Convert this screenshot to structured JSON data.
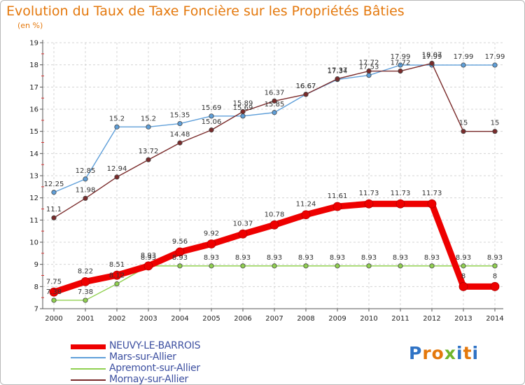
{
  "header": {
    "title": "Evolution du Taux de Taxe Foncière sur les Propriétés Bâties",
    "unit": "(en %)"
  },
  "logo": {
    "letters": [
      "P",
      "r",
      "o",
      "x",
      "i",
      "t",
      "i"
    ],
    "colors": [
      "#2f73c5",
      "#e4780c",
      "#e4780c",
      "#6fb52c",
      "#2f73c5",
      "#e4780c",
      "#2f73c5"
    ]
  },
  "chart_data": {
    "type": "line",
    "title": "Evolution du Taux de Taxe Foncière sur les Propriétés Bâties",
    "ylabel": "(en %)",
    "xlabel": "",
    "categories": [
      "2000",
      "2001",
      "2002",
      "2003",
      "2004",
      "2005",
      "2006",
      "2007",
      "2008",
      "2009",
      "2010",
      "2011",
      "2012",
      "2013",
      "2014"
    ],
    "ylim": [
      7,
      19
    ],
    "yticks": [
      "7",
      "8",
      "9",
      "10",
      "11",
      "12",
      "13",
      "14",
      "15",
      "16",
      "17",
      "18",
      "19"
    ],
    "grid": true,
    "legend_position": "bottom-left",
    "series": [
      {
        "name": "NEUVY-LE-BARROIS",
        "color": "#ee0000",
        "values": [
          7.75,
          8.22,
          8.51,
          8.93,
          9.56,
          9.92,
          10.37,
          10.78,
          11.24,
          11.61,
          11.73,
          11.73,
          11.73,
          8,
          8
        ],
        "labels": [
          "7.75",
          "8.22",
          "8.51",
          "8.93",
          "9.56",
          "9.92",
          "10.37",
          "10.78",
          "11.24",
          "11.61",
          "11.73",
          "11.73",
          "11.73",
          "8",
          "8"
        ]
      },
      {
        "name": "Mars-sur-Allier",
        "color": "#5f9fd9",
        "values": [
          12.25,
          12.85,
          15.2,
          15.2,
          15.35,
          15.69,
          15.69,
          15.85,
          16.67,
          17.34,
          17.53,
          17.99,
          17.99,
          17.99,
          17.99
        ],
        "labels": [
          "12.25",
          "12.85",
          "15.2",
          "15.2",
          "15.35",
          "15.69",
          "15.69",
          "15.85",
          "16.67",
          "17.34",
          "17.53",
          "17.99",
          "17.99",
          "17.99",
          "17.99"
        ]
      },
      {
        "name": "Apremont-sur-Allier",
        "color": "#90d050",
        "values": [
          7.38,
          7.38,
          8.12,
          8.93,
          8.93,
          8.93,
          8.93,
          8.93,
          8.93,
          8.93,
          8.93,
          8.93,
          8.93,
          8.93,
          8.93
        ],
        "labels": [
          "7.38",
          "7.38",
          "8.12",
          "8.93",
          "8.93",
          "8.93",
          "8.93",
          "8.93",
          "8.93",
          "8.93",
          "8.93",
          "8.93",
          "8.93",
          "8.93",
          "8.93"
        ]
      },
      {
        "name": "Mornay-sur-Allier",
        "color": "#7a2b2b",
        "values": [
          11.1,
          11.98,
          12.94,
          13.72,
          14.48,
          15.06,
          15.89,
          16.37,
          16.67,
          17.37,
          17.72,
          17.72,
          18.07,
          15,
          15
        ],
        "labels": [
          "11.1",
          "11.98",
          "12.94",
          "13.72",
          "14.48",
          "15.06",
          "15.89",
          "16.37",
          "16.67",
          "17.37",
          "17.72",
          "17.72",
          "18.07",
          "15",
          "15"
        ]
      }
    ]
  }
}
